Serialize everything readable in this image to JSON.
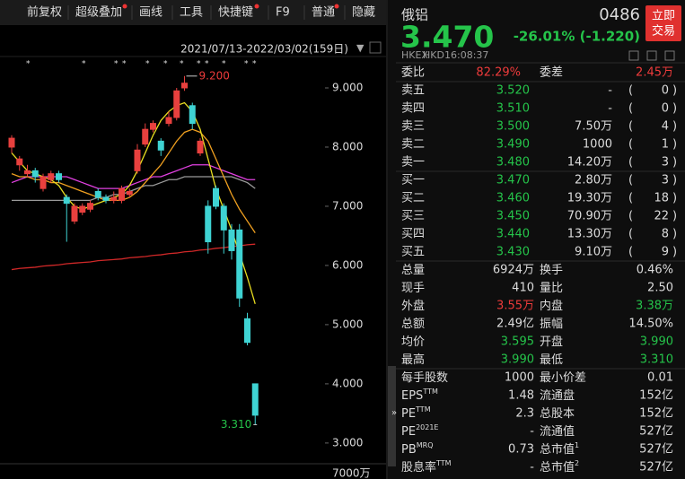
{
  "toolbar": {
    "items": [
      "前复权",
      "超级叠加",
      "画线",
      "工具",
      "快捷键",
      "F9",
      "普通",
      "隐藏"
    ]
  },
  "chart_data": {
    "type": "candlestick",
    "date_range": "2021/07/13-2022/03/02(159日)",
    "ylim": [
      2.68,
      9.5
    ],
    "yticks": [
      {
        "value": 9,
        "label": "9.000"
      },
      {
        "value": 8,
        "label": "8.000"
      },
      {
        "value": 7,
        "label": "7.000"
      },
      {
        "value": 6,
        "label": "6.000"
      },
      {
        "value": 5,
        "label": "5.000"
      },
      {
        "value": 4,
        "label": "4.000"
      },
      {
        "value": 3,
        "label": "3.000"
      }
    ],
    "up_color": "#e8403e",
    "down_color": "#3fd3d3",
    "candles": {
      "open": [
        8.0,
        7.7,
        7.55,
        7.6,
        7.3,
        7.45,
        7.55,
        7.15,
        6.75,
        6.9,
        6.95,
        7.25,
        7.15,
        7.1,
        7.1,
        7.2,
        7.6,
        8.05,
        8.3,
        8.1,
        8.4,
        8.5,
        9.0,
        8.7,
        7.9,
        7.0,
        7.3,
        7.0,
        6.6,
        6.6,
        5.1,
        4.0
      ],
      "close": [
        8.15,
        7.8,
        7.6,
        7.5,
        7.5,
        7.55,
        7.45,
        7.05,
        7.0,
        7.0,
        7.05,
        7.15,
        7.1,
        7.15,
        7.3,
        7.25,
        7.95,
        8.3,
        8.4,
        7.95,
        8.5,
        8.95,
        9.08,
        8.4,
        8.1,
        6.4,
        7.0,
        6.6,
        6.25,
        5.45,
        4.7,
        3.47
      ],
      "high": [
        8.2,
        7.85,
        7.7,
        7.65,
        7.55,
        7.6,
        7.6,
        7.2,
        7.05,
        7.05,
        7.1,
        7.3,
        7.2,
        7.25,
        7.35,
        7.3,
        8.05,
        8.4,
        8.45,
        8.15,
        8.6,
        9.0,
        9.2,
        8.75,
        8.15,
        7.1,
        7.35,
        7.05,
        6.7,
        6.7,
        5.2,
        4.0
      ],
      "low": [
        7.9,
        7.6,
        7.5,
        7.4,
        7.25,
        7.4,
        7.4,
        6.4,
        6.7,
        6.85,
        6.9,
        7.1,
        7.05,
        7.05,
        7.05,
        7.15,
        7.55,
        8.0,
        8.25,
        7.85,
        8.35,
        8.45,
        8.95,
        8.3,
        7.85,
        6.2,
        6.95,
        6.2,
        6.1,
        5.3,
        4.65,
        3.31
      ]
    },
    "series": [
      {
        "color": "#9a9a9a",
        "values": [
          7.1,
          7.1,
          7.1,
          7.1,
          7.1,
          7.1,
          7.1,
          7.1,
          7.1,
          7.1,
          7.1,
          7.15,
          7.15,
          7.2,
          7.2,
          7.25,
          7.3,
          7.35,
          7.35,
          7.4,
          7.45,
          7.45,
          7.5,
          7.5,
          7.5,
          7.5,
          7.5,
          7.5,
          7.5,
          7.45,
          7.4,
          7.3
        ]
      },
      {
        "color": "#e040e0",
        "values": [
          7.4,
          7.45,
          7.5,
          7.5,
          7.5,
          7.5,
          7.5,
          7.5,
          7.45,
          7.4,
          7.35,
          7.3,
          7.3,
          7.3,
          7.3,
          7.35,
          7.4,
          7.45,
          7.5,
          7.5,
          7.55,
          7.6,
          7.65,
          7.7,
          7.7,
          7.7,
          7.65,
          7.6,
          7.55,
          7.5,
          7.45,
          7.45
        ]
      },
      {
        "color": "#f0a020",
        "values": [
          7.55,
          7.5,
          7.5,
          7.45,
          7.45,
          7.4,
          7.4,
          7.35,
          7.3,
          7.25,
          7.2,
          7.15,
          7.1,
          7.1,
          7.1,
          7.15,
          7.25,
          7.4,
          7.55,
          7.7,
          7.9,
          8.1,
          8.25,
          8.3,
          8.25,
          8.1,
          7.8,
          7.5,
          7.2,
          6.95,
          6.75,
          6.55
        ]
      },
      {
        "color": "#e8dc20",
        "values": [
          7.9,
          7.75,
          7.6,
          7.55,
          7.5,
          7.45,
          7.35,
          7.15,
          7.0,
          6.95,
          7.0,
          7.05,
          7.1,
          7.15,
          7.2,
          7.35,
          7.6,
          7.9,
          8.2,
          8.45,
          8.6,
          8.7,
          8.75,
          8.6,
          8.3,
          7.8,
          7.3,
          6.95,
          6.6,
          6.2,
          5.8,
          5.35
        ]
      },
      {
        "color": "#d02828",
        "values": [
          5.93,
          5.95,
          5.96,
          5.97,
          5.99,
          6.0,
          6.01,
          6.03,
          6.04,
          6.05,
          6.06,
          6.08,
          6.09,
          6.1,
          6.11,
          6.13,
          6.14,
          6.15,
          6.17,
          6.18,
          6.2,
          6.21,
          6.23,
          6.24,
          6.26,
          6.27,
          6.29,
          6.3,
          6.32,
          6.33,
          6.35,
          6.36
        ]
      }
    ],
    "annotations": [
      {
        "value": 9.2,
        "label": "9.200",
        "candle": 22
      },
      {
        "value": 3.31,
        "label": "3.310",
        "candle": 31
      }
    ],
    "volume_label": "7000万"
  },
  "quote": {
    "name": "俄铝",
    "code": "0486",
    "trade_button": [
      "立即",
      "交易"
    ],
    "price": "3.470",
    "change": "-26.01% (-1.220)",
    "exchange": "HKEX",
    "currency": "HKD",
    "time": "16:08:37",
    "ratio": {
      "label": "委比",
      "value": "82.29%",
      "diff_label": "委差",
      "diff_value": "2.45万"
    },
    "asks": [
      {
        "label": "卖五",
        "price": "3.520",
        "volume": "-",
        "count": "0"
      },
      {
        "label": "卖四",
        "price": "3.510",
        "volume": "-",
        "count": "0"
      },
      {
        "label": "卖三",
        "price": "3.500",
        "volume": "7.50万",
        "count": "4"
      },
      {
        "label": "卖二",
        "price": "3.490",
        "volume": "1000",
        "count": "1"
      },
      {
        "label": "卖一",
        "price": "3.480",
        "volume": "14.20万",
        "count": "3"
      }
    ],
    "bids": [
      {
        "label": "买一",
        "price": "3.470",
        "volume": "2.80万",
        "count": "3"
      },
      {
        "label": "买二",
        "price": "3.460",
        "volume": "19.30万",
        "count": "18"
      },
      {
        "label": "买三",
        "price": "3.450",
        "volume": "70.90万",
        "count": "22"
      },
      {
        "label": "买四",
        "price": "3.440",
        "volume": "13.30万",
        "count": "8"
      },
      {
        "label": "买五",
        "price": "3.430",
        "volume": "9.10万",
        "count": "9"
      }
    ],
    "stats": [
      [
        {
          "label": {
            "text": "总量"
          },
          "value": "6924万",
          "tone": "neutral"
        },
        {
          "label": {
            "text": "换手"
          },
          "value": "0.46%",
          "tone": "neutral"
        }
      ],
      [
        {
          "label": {
            "text": "现手"
          },
          "value": "410",
          "tone": "neutral"
        },
        {
          "label": {
            "text": "量比"
          },
          "value": "2.50",
          "tone": "neutral"
        }
      ],
      [
        {
          "label": {
            "text": "外盘"
          },
          "value": "3.55万",
          "tone": "up"
        },
        {
          "label": {
            "text": "内盘"
          },
          "value": "3.38万",
          "tone": "down"
        }
      ],
      [
        {
          "label": {
            "text": "总额"
          },
          "value": "2.49亿",
          "tone": "neutral"
        },
        {
          "label": {
            "text": "振幅"
          },
          "value": "14.50%",
          "tone": "neutral"
        }
      ],
      [
        {
          "label": {
            "text": "均价"
          },
          "value": "3.595",
          "tone": "down"
        },
        {
          "label": {
            "text": "开盘"
          },
          "value": "3.990",
          "tone": "down"
        }
      ],
      [
        {
          "label": {
            "text": "最高"
          },
          "value": "3.990",
          "tone": "down"
        },
        {
          "label": {
            "text": "最低"
          },
          "value": "3.310",
          "tone": "down"
        }
      ]
    ],
    "fundamentals": [
      [
        {
          "label": {
            "text": "每手股数"
          },
          "value": "1000",
          "tone": "neutral"
        },
        {
          "label": {
            "text": "最小价差"
          },
          "value": "0.01",
          "tone": "neutral"
        }
      ],
      [
        {
          "label": {
            "text": "EPS",
            "sup": "TTM"
          },
          "value": "1.48",
          "tone": "neutral"
        },
        {
          "label": {
            "text": "流通盘"
          },
          "value": "152亿",
          "tone": "neutral"
        }
      ],
      [
        {
          "label": {
            "text": "PE",
            "sup": "TTM"
          },
          "value": "2.3",
          "tone": "neutral"
        },
        {
          "label": {
            "text": "总股本"
          },
          "value": "152亿",
          "tone": "neutral"
        }
      ],
      [
        {
          "label": {
            "text": "PE",
            "sup": "2021E"
          },
          "value": "-",
          "tone": "neutral"
        },
        {
          "label": {
            "text": "流通值"
          },
          "value": "527亿",
          "tone": "neutral"
        }
      ],
      [
        {
          "label": {
            "text": "PB",
            "sup": "MRQ"
          },
          "value": "0.73",
          "tone": "neutral"
        },
        {
          "label": {
            "text": "总市值",
            "sup": "1"
          },
          "value": "527亿",
          "tone": "neutral"
        }
      ],
      [
        {
          "label": {
            "text": "股息率",
            "sup": "TTM"
          },
          "value": "-",
          "tone": "neutral"
        },
        {
          "label": {
            "text": "总市值",
            "sup": "2"
          },
          "value": "527亿",
          "tone": "neutral"
        }
      ]
    ]
  }
}
